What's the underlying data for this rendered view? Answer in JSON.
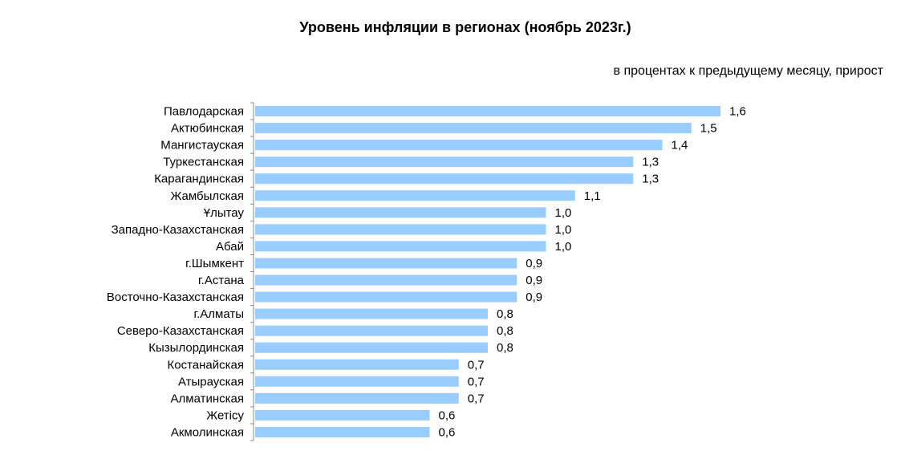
{
  "chart_data": {
    "type": "bar",
    "orientation": "horizontal",
    "title": "Уровень инфляции в регионах (ноябрь 2023г.)",
    "subtitle": "в процентах к предыдущему месяцу, прирост",
    "categories": [
      "Павлодарская",
      "Актюбинская",
      "Мангистауская",
      "Туркестанская",
      "Карагандинская",
      "Жамбылская",
      "Ұлытау",
      "Западно-Казахстанская",
      "Абай",
      "г.Шымкент",
      "г.Астана",
      "Восточно-Казахстанская",
      "г.Алматы",
      "Северо-Казахстанская",
      "Кызылординская",
      "Костанайская",
      "Атырауская",
      "Алматинская",
      "Жетісу",
      "Акмолинская"
    ],
    "values": [
      1.6,
      1.5,
      1.4,
      1.3,
      1.3,
      1.1,
      1.0,
      1.0,
      1.0,
      0.9,
      0.9,
      0.9,
      0.8,
      0.8,
      0.8,
      0.7,
      0.7,
      0.7,
      0.6,
      0.6
    ],
    "value_labels": [
      "1,6",
      "1,5",
      "1,4",
      "1,3",
      "1,3",
      "1,1",
      "1,0",
      "1,0",
      "1,0",
      "0,9",
      "0,9",
      "0,9",
      "0,8",
      "0,8",
      "0,8",
      "0,7",
      "0,7",
      "0,7",
      "0,6",
      "0,6"
    ],
    "xlim": [
      0,
      1.6
    ],
    "bar_color": "#99CCFF",
    "grid": false,
    "legend": "none"
  }
}
